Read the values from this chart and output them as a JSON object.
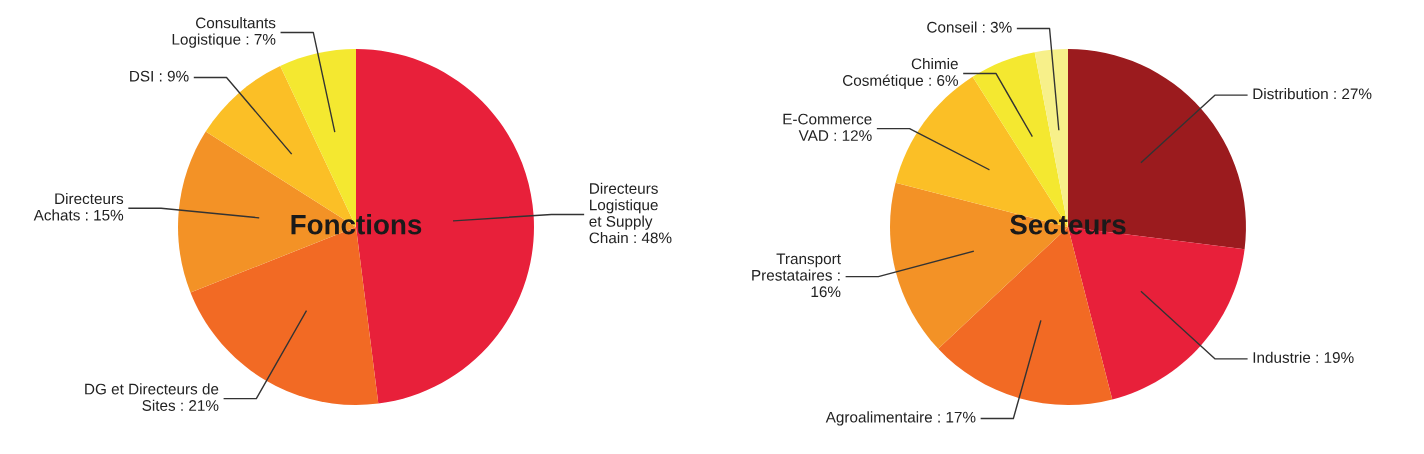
{
  "chart_data": [
    {
      "type": "pie",
      "title": "Fonctions",
      "categories": [
        "Directeurs\nLogistique\net Supply\nChain : 48%",
        "DG et Directeurs de\nSites : 21%",
        "Directeurs\nAchats : 15%",
        "DSI : 9%",
        "Consultants\nLogistique : 7%"
      ],
      "values": [
        48,
        21,
        15,
        9,
        7
      ],
      "colors": [
        "#e8203a",
        "#f26a24",
        "#f39226",
        "#fbbf26",
        "#f4e830"
      ]
    },
    {
      "type": "pie",
      "title": "Secteurs",
      "categories": [
        "Distribution : 27%",
        "Industrie : 19%",
        "Agroalimentaire : 17%",
        "Transport\nPrestataires :\n16%",
        "E-Commerce\nVAD : 12%",
        "Chimie\nCosmétique : 6%",
        "Conseil : 3%"
      ],
      "values": [
        27,
        19,
        17,
        16,
        12,
        6,
        3
      ],
      "colors": [
        "#9b1b1e",
        "#e8203a",
        "#f26a24",
        "#f39226",
        "#fbbf26",
        "#f4e830",
        "#f7f08a"
      ]
    }
  ]
}
